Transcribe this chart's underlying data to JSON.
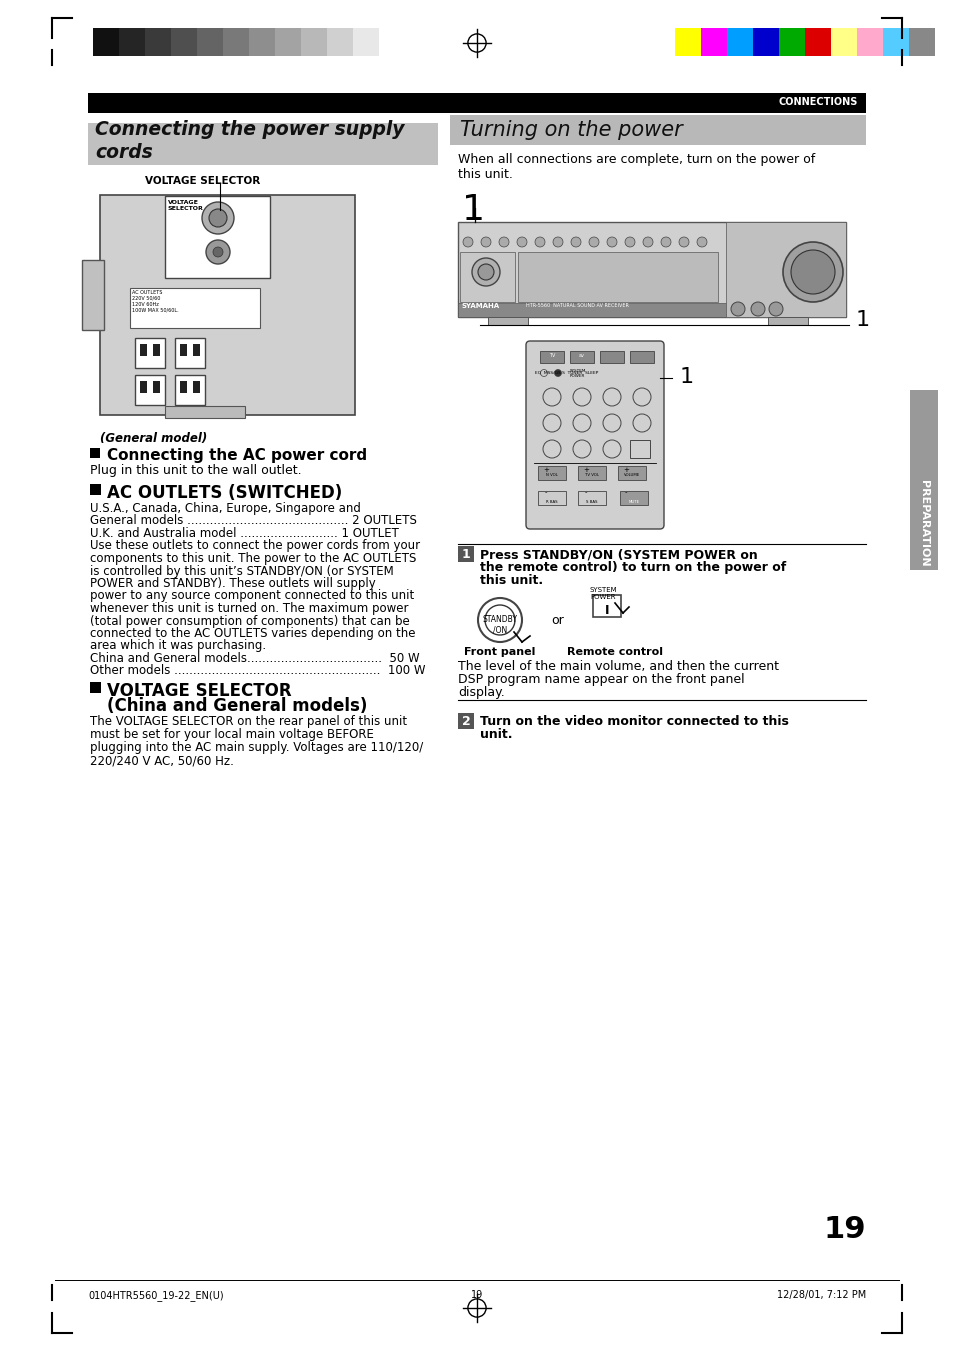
{
  "page_bg": "#ffffff",
  "header_bar_color": "#000000",
  "header_text": "CONNECTIONS",
  "header_text_color": "#ffffff",
  "left_section_title": "Connecting the power supply\ncords",
  "left_section_bg": "#c0c0c0",
  "right_section_title": "Turning on the power",
  "right_section_bg": "#b8b8b8",
  "color_bars_left": [
    "#111111",
    "#252525",
    "#3a3a3a",
    "#4f4f4f",
    "#646464",
    "#797979",
    "#8e8e8e",
    "#a3a3a3",
    "#b8b8b8",
    "#d0d0d0",
    "#e8e8e8"
  ],
  "color_bars_right": [
    "#ffff00",
    "#ff00ff",
    "#009fff",
    "#0000cc",
    "#00aa00",
    "#dd0000",
    "#ffff88",
    "#ffaacc",
    "#55ccff",
    "#888888"
  ],
  "voltage_selector_label": "VOLTAGE SELECTOR",
  "general_model_label": "(General model)",
  "connecting_ac_title": "Connecting the AC power cord",
  "connecting_ac_body": "Plug in this unit to the wall outlet.",
  "ac_outlets_title": "AC OUTLETS (SWITCHED)",
  "ac_outlets_body_lines": [
    "U.S.A., Canada, China, Europe, Singapore and",
    "General models ........................................... 2 OUTLETS",
    "U.K. and Australia model .......................... 1 OUTLET",
    "Use these outlets to connect the power cords from your",
    "components to this unit. The power to the AC OUTLETS",
    "is controlled by this unit’s STANDBY/ON (or SYSTEM",
    "POWER and STANDBY). These outlets will supply",
    "power to any source component connected to this unit",
    "whenever this unit is turned on. The maximum power",
    "(total power consumption of components) that can be",
    "connected to the AC OUTLETS varies depending on the",
    "area which it was purchasing.",
    "China and General models....................................  50 W",
    "Other models .......................................................  100 W"
  ],
  "voltage_selector_title_line1": "VOLTAGE SELECTOR",
  "voltage_selector_title_line2": "(China and General models)",
  "voltage_selector_body_lines": [
    "The VOLTAGE SELECTOR on the rear panel of this unit",
    "must be set for your local main voltage BEFORE",
    "plugging into the AC main supply. Voltages are 110/120/",
    "220/240 V AC, 50/60 Hz."
  ],
  "turning_on_intro": "When all connections are complete, turn on the power of\nthis unit.",
  "step1_num": "1",
  "step1_instruction_line1": "Press STANDBY/ON (SYSTEM POWER on",
  "step1_instruction_line2": "the remote control) to turn on the power of",
  "step1_instruction_line3": "this unit.",
  "front_panel_label": "Front panel",
  "remote_control_label": "Remote control",
  "or_label": "or",
  "level_text_lines": [
    "The level of the main volume, and then the current",
    "DSP program name appear on the front panel",
    "display."
  ],
  "step2_num": "2",
  "step2_instruction_line1": "Turn on the video monitor connected to this",
  "step2_instruction_line2": "unit.",
  "preparation_label": "PREPARATION",
  "page_number": "19",
  "footer_left": "0104HTR5560_19-22_EN(U)",
  "footer_center": "19",
  "footer_right": "12/28/01, 7:12 PM"
}
